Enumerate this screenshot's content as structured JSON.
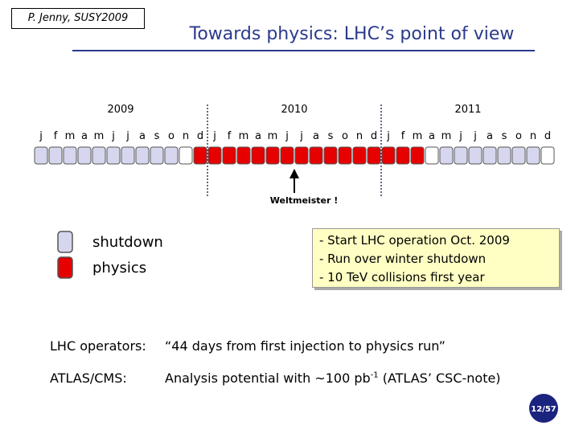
{
  "header": {
    "author": "P. Jenny,  SUSY2009",
    "title": "Towards physics: LHC’s point of view"
  },
  "timeline": {
    "years": [
      {
        "label": "2009",
        "months": [
          "j",
          "f",
          "m",
          "a",
          "m",
          "j",
          "j",
          "a",
          "s",
          "o",
          "n",
          "d"
        ]
      },
      {
        "label": "2010",
        "months": [
          "j",
          "f",
          "m",
          "a",
          "m",
          "j",
          "j",
          "a",
          "s",
          "o",
          "n",
          "d"
        ]
      },
      {
        "label": "2011",
        "months": [
          "j",
          "f",
          "m",
          "a",
          "m",
          "j",
          "j",
          "a",
          "s",
          "o",
          "n",
          "d"
        ]
      }
    ],
    "box_colors": [
      "#d6d6ee",
      "#d6d6ee",
      "#d6d6ee",
      "#d6d6ee",
      "#d6d6ee",
      "#d6d6ee",
      "#d6d6ee",
      "#d6d6ee",
      "#d6d6ee",
      "#d6d6ee",
      "#ffffff",
      "#e60000",
      "#e60000",
      "#e60000",
      "#e60000",
      "#e60000",
      "#e60000",
      "#e60000",
      "#e60000",
      "#e60000",
      "#e60000",
      "#e60000",
      "#e60000",
      "#e60000",
      "#e60000",
      "#e60000",
      "#e60000",
      "#ffffff",
      "#d6d6ee",
      "#d6d6ee",
      "#d6d6ee",
      "#d6d6ee",
      "#d6d6ee",
      "#d6d6ee",
      "#d6d6ee",
      "#ffffff"
    ],
    "marker": "Weltmeister !"
  },
  "legend": [
    {
      "label": "shutdown",
      "color": "#d6d6ee"
    },
    {
      "label": "physics",
      "color": "#e60000"
    }
  ],
  "note": [
    "- Start LHC operation Oct. 2009",
    "- Run over winter shutdown",
    "- 10 TeV collisions first year"
  ],
  "rows": [
    {
      "label": "LHC operators:",
      "text": "“44 days from first injection to physics run”"
    },
    {
      "label": "ATLAS/CMS:",
      "text": "Analysis potential with ~100 pb",
      "sup": "-1",
      "tail": " (ATLAS’ CSC-note)"
    }
  ],
  "page": "12/57"
}
